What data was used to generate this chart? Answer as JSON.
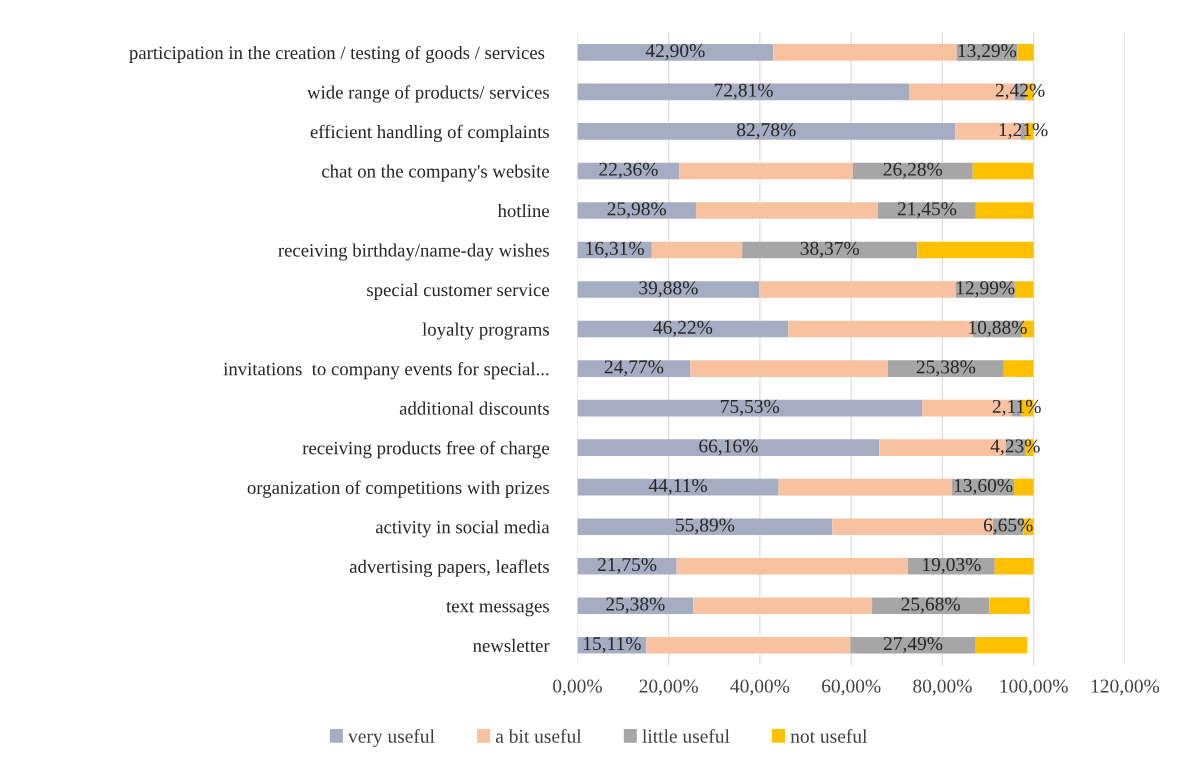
{
  "chart_data": {
    "type": "bar",
    "orientation": "horizontal",
    "stacked": true,
    "categories": [
      "participation in the creation / testing of goods / services ",
      "wide range of products/ services",
      "efficient handling of complaints",
      "chat on the company's website",
      "hotline",
      "receiving birthday/name-day wishes",
      "special customer service",
      "loyalty programs",
      "invitations  to company events for special...",
      "additional discounts",
      "receiving products free of charge",
      "organization of competitions with prizes",
      "activity in social media",
      "advertising papers, leaflets",
      "text messages",
      "newsletter"
    ],
    "series": [
      {
        "name": "very useful",
        "color": "#a5adc2",
        "values": [
          42.9,
          72.81,
          82.78,
          22.36,
          25.98,
          16.31,
          39.88,
          46.22,
          24.77,
          75.53,
          66.16,
          44.11,
          55.89,
          21.75,
          25.38,
          15.11
        ],
        "value_labels": [
          "42,90%",
          "72,81%",
          "82,78%",
          "22,36%",
          "25,98%",
          "16,31%",
          "39,88%",
          "46,22%",
          "24,77%",
          "75,53%",
          "66,16%",
          "44,11%",
          "55,89%",
          "21,75%",
          "25,38%",
          "15,11%"
        ]
      },
      {
        "name": "a bit useful",
        "color": "#f8c2a0",
        "values": [
          40.2,
          23.0,
          14.3,
          38.0,
          39.9,
          19.8,
          43.0,
          40.4,
          43.3,
          19.7,
          27.7,
          38.0,
          35.2,
          50.7,
          39.2,
          44.7
        ]
      },
      {
        "name": "little useful",
        "color": "#a6a6a6",
        "values": [
          13.29,
          2.42,
          1.21,
          26.28,
          21.45,
          38.37,
          12.99,
          10.88,
          25.38,
          2.11,
          4.23,
          13.6,
          6.65,
          19.03,
          25.68,
          27.49
        ],
        "value_labels": [
          "13,29%",
          "2,42%",
          "1,21%",
          "26,28%",
          "21,45%",
          "38,37%",
          "12,99%",
          "10,88%",
          "25,38%",
          "2,11%",
          "4,23%",
          "13,60%",
          "6,65%",
          "19,03%",
          "25,68%",
          "27,49%"
        ]
      },
      {
        "name": "not useful",
        "color": "#ffc000",
        "values": [
          3.6,
          1.8,
          1.7,
          13.3,
          12.6,
          25.5,
          4.1,
          2.6,
          6.5,
          2.6,
          1.9,
          4.3,
          2.3,
          8.5,
          8.9,
          11.3
        ]
      }
    ],
    "xlim": [
      0,
      120
    ],
    "xticks": [
      {
        "value": 0,
        "label": "0,00%"
      },
      {
        "value": 20,
        "label": "20,00%"
      },
      {
        "value": 40,
        "label": "40,00%"
      },
      {
        "value": 60,
        "label": "60,00%"
      },
      {
        "value": 80,
        "label": "80,00%"
      },
      {
        "value": 100,
        "label": "100,00%"
      },
      {
        "value": 120,
        "label": "120,00%"
      }
    ],
    "grid": "x",
    "legend": "bottom"
  }
}
